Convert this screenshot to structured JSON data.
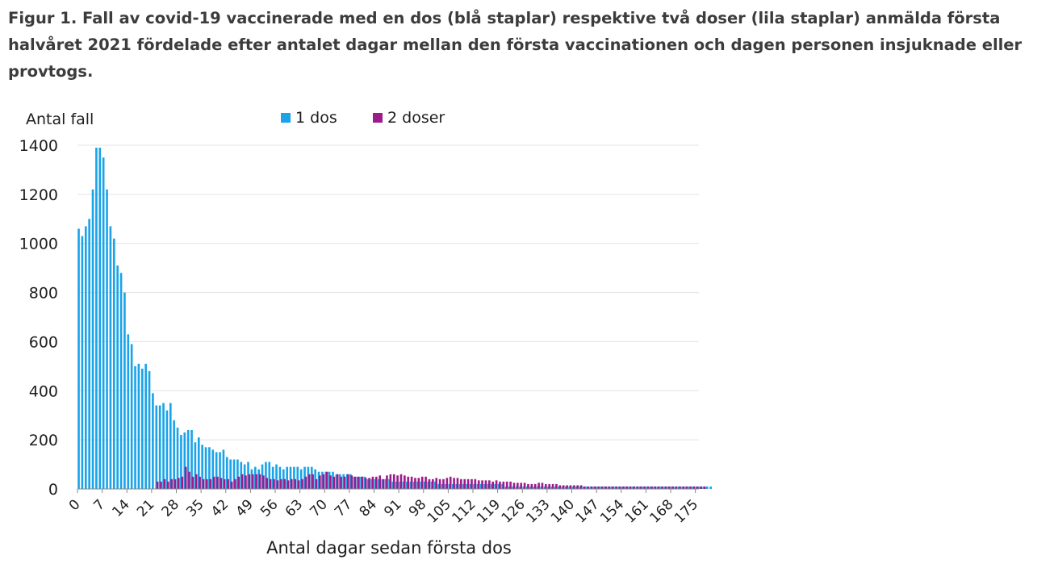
{
  "caption": "Figur 1. Fall av covid-19 vaccinerade med en dos (blå staplar) respektive två doser (lila staplar) anmälda första halvåret 2021 fördelade efter antalet dagar mellan den första vaccinationen och dagen personen insjuknade eller provtogs.",
  "chart_data": {
    "type": "bar",
    "xlabel": "Antal dagar sedan första dos",
    "ylabel": "Antal fall",
    "ylim": [
      0,
      1400
    ],
    "yticks": [
      0,
      200,
      400,
      600,
      800,
      1000,
      1200,
      1400
    ],
    "xticks": [
      "0",
      "7",
      "14",
      "21",
      "28",
      "35",
      "42",
      "49",
      "56",
      "63",
      "70",
      "77",
      "84",
      "91",
      "98",
      "105",
      "112",
      "119",
      "126",
      "133",
      "140",
      "147",
      "154",
      "161",
      "168",
      "175"
    ],
    "x_start": 0,
    "x_end": 175,
    "grid": true,
    "legend_position": "top",
    "series": [
      {
        "name": "1 dos",
        "color": "#1aa3e8",
        "values": [
          1060,
          1030,
          1070,
          1100,
          1220,
          1390,
          1390,
          1350,
          1220,
          1070,
          1020,
          910,
          880,
          800,
          630,
          590,
          500,
          510,
          490,
          510,
          480,
          390,
          340,
          340,
          350,
          320,
          350,
          280,
          250,
          220,
          230,
          240,
          240,
          190,
          210,
          180,
          170,
          170,
          160,
          150,
          150,
          160,
          130,
          120,
          120,
          120,
          110,
          100,
          110,
          80,
          90,
          80,
          100,
          110,
          110,
          90,
          100,
          90,
          80,
          90,
          90,
          90,
          90,
          80,
          90,
          90,
          90,
          80,
          70,
          70,
          70,
          70,
          70,
          60,
          60,
          60,
          60,
          60,
          50,
          50,
          50,
          50,
          40,
          40,
          40,
          40,
          40,
          40,
          40,
          30,
          30,
          30,
          30,
          30,
          30,
          30,
          30,
          30,
          30,
          30,
          30,
          30,
          20,
          20,
          20,
          20,
          20,
          20,
          20,
          20,
          20,
          20,
          20,
          20,
          20,
          20,
          20,
          20,
          20,
          20,
          20,
          10,
          10,
          10,
          10,
          10,
          10,
          10,
          10,
          10,
          10,
          10,
          10,
          10,
          10,
          10,
          10,
          10,
          10,
          10,
          10,
          10,
          10,
          10,
          10,
          10,
          10,
          10,
          10,
          10,
          10,
          10,
          10,
          10,
          10,
          10,
          10,
          10,
          10,
          10,
          10,
          10,
          10,
          10,
          10,
          10,
          10,
          10,
          10,
          10,
          10,
          10,
          10,
          10,
          10,
          10,
          10,
          10,
          10,
          10
        ]
      },
      {
        "name": "2 doser",
        "color": "#9c1c8c",
        "values": [
          0,
          0,
          0,
          0,
          0,
          0,
          0,
          0,
          0,
          0,
          0,
          0,
          0,
          0,
          0,
          0,
          0,
          0,
          0,
          0,
          0,
          0,
          30,
          30,
          40,
          30,
          40,
          40,
          45,
          50,
          90,
          70,
          50,
          60,
          50,
          40,
          40,
          40,
          50,
          50,
          45,
          40,
          40,
          30,
          40,
          50,
          60,
          55,
          60,
          60,
          60,
          60,
          55,
          45,
          40,
          40,
          35,
          40,
          40,
          35,
          40,
          40,
          35,
          40,
          50,
          60,
          60,
          40,
          55,
          60,
          70,
          55,
          50,
          60,
          50,
          50,
          60,
          55,
          50,
          50,
          50,
          45,
          45,
          50,
          50,
          55,
          40,
          55,
          60,
          60,
          55,
          60,
          55,
          50,
          50,
          45,
          45,
          50,
          50,
          40,
          40,
          45,
          40,
          40,
          45,
          50,
          45,
          45,
          40,
          40,
          40,
          40,
          40,
          35,
          35,
          35,
          35,
          30,
          35,
          30,
          30,
          30,
          30,
          25,
          25,
          25,
          25,
          20,
          20,
          20,
          25,
          25,
          20,
          20,
          20,
          20,
          15,
          15,
          15,
          15,
          15,
          15,
          15,
          10,
          10,
          10,
          10,
          10,
          10,
          10,
          10,
          10,
          10,
          10,
          10,
          10,
          10,
          10,
          10,
          10,
          10,
          10,
          10,
          10,
          10,
          10,
          10,
          10,
          10,
          10,
          10,
          10,
          10,
          10,
          10,
          10,
          10,
          10
        ]
      }
    ]
  }
}
